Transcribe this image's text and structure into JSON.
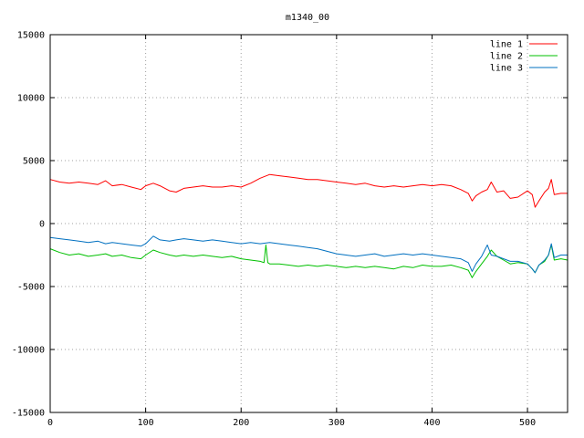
{
  "chart_data": {
    "type": "line",
    "title": "m1340_00",
    "xlabel": "",
    "ylabel": "",
    "xlim": [
      0,
      542
    ],
    "ylim": [
      -15000,
      15000
    ],
    "x_ticks": [
      0,
      100,
      200,
      300,
      400,
      500
    ],
    "y_ticks": [
      -15000,
      -10000,
      -5000,
      0,
      5000,
      10000,
      15000
    ],
    "grid": true,
    "legend_position": "top-right",
    "series": [
      {
        "name": "line 1",
        "color": "#ff0000",
        "x": [
          0,
          10,
          20,
          30,
          40,
          50,
          58,
          65,
          75,
          85,
          95,
          100,
          108,
          115,
          125,
          132,
          140,
          150,
          160,
          170,
          180,
          190,
          200,
          210,
          220,
          230,
          240,
          250,
          260,
          270,
          280,
          290,
          300,
          310,
          320,
          330,
          340,
          350,
          360,
          370,
          380,
          390,
          400,
          410,
          420,
          430,
          438,
          442,
          446,
          452,
          458,
          462,
          468,
          475,
          482,
          490,
          500,
          505,
          508,
          512,
          518,
          522,
          525,
          528,
          535,
          542
        ],
        "values": [
          3500,
          3300,
          3200,
          3300,
          3200,
          3100,
          3400,
          3000,
          3100,
          2900,
          2700,
          3000,
          3200,
          3000,
          2600,
          2500,
          2800,
          2900,
          3000,
          2900,
          2900,
          3000,
          2900,
          3200,
          3600,
          3900,
          3800,
          3700,
          3600,
          3500,
          3500,
          3400,
          3300,
          3200,
          3100,
          3200,
          3000,
          2900,
          3000,
          2900,
          3000,
          3100,
          3000,
          3100,
          3000,
          2700,
          2400,
          1800,
          2200,
          2500,
          2700,
          3300,
          2500,
          2600,
          2000,
          2100,
          2600,
          2300,
          1300,
          1800,
          2500,
          2800,
          3500,
          2300,
          2400,
          2400
        ]
      },
      {
        "name": "line 2",
        "color": "#00c000",
        "x": [
          0,
          10,
          20,
          30,
          40,
          50,
          58,
          65,
          75,
          85,
          95,
          100,
          108,
          115,
          125,
          132,
          140,
          150,
          160,
          170,
          180,
          190,
          200,
          210,
          220,
          224,
          226,
          228,
          230,
          240,
          250,
          260,
          270,
          280,
          290,
          300,
          310,
          320,
          330,
          340,
          350,
          360,
          370,
          380,
          390,
          400,
          410,
          420,
          430,
          438,
          442,
          446,
          452,
          458,
          462,
          468,
          475,
          482,
          490,
          500,
          505,
          508,
          512,
          518,
          522,
          525,
          528,
          535,
          542
        ],
        "values": [
          -2000,
          -2300,
          -2500,
          -2400,
          -2600,
          -2500,
          -2400,
          -2600,
          -2500,
          -2700,
          -2800,
          -2500,
          -2100,
          -2300,
          -2500,
          -2600,
          -2500,
          -2600,
          -2500,
          -2600,
          -2700,
          -2600,
          -2800,
          -2900,
          -3000,
          -3100,
          -1700,
          -3100,
          -3200,
          -3200,
          -3300,
          -3400,
          -3300,
          -3400,
          -3300,
          -3400,
          -3500,
          -3400,
          -3500,
          -3400,
          -3500,
          -3600,
          -3400,
          -3500,
          -3300,
          -3400,
          -3400,
          -3300,
          -3500,
          -3700,
          -4300,
          -3800,
          -3200,
          -2600,
          -2100,
          -2600,
          -2900,
          -3200,
          -3100,
          -3200,
          -3600,
          -3900,
          -3300,
          -3000,
          -2500,
          -1700,
          -2900,
          -2800,
          -2900
        ]
      },
      {
        "name": "line 3",
        "color": "#0070c0",
        "x": [
          0,
          10,
          20,
          30,
          40,
          50,
          58,
          65,
          75,
          85,
          95,
          100,
          108,
          115,
          125,
          132,
          140,
          150,
          160,
          170,
          180,
          190,
          200,
          210,
          220,
          230,
          240,
          250,
          260,
          270,
          280,
          290,
          300,
          310,
          320,
          330,
          340,
          350,
          360,
          370,
          380,
          390,
          400,
          410,
          420,
          430,
          438,
          442,
          446,
          452,
          458,
          462,
          468,
          475,
          482,
          490,
          500,
          505,
          508,
          512,
          518,
          522,
          525,
          528,
          535,
          542
        ],
        "values": [
          -1100,
          -1200,
          -1300,
          -1400,
          -1500,
          -1400,
          -1600,
          -1500,
          -1600,
          -1700,
          -1800,
          -1600,
          -1000,
          -1300,
          -1400,
          -1300,
          -1200,
          -1300,
          -1400,
          -1300,
          -1400,
          -1500,
          -1600,
          -1500,
          -1600,
          -1500,
          -1600,
          -1700,
          -1800,
          -1900,
          -2000,
          -2200,
          -2400,
          -2500,
          -2600,
          -2500,
          -2400,
          -2600,
          -2500,
          -2400,
          -2500,
          -2400,
          -2500,
          -2600,
          -2700,
          -2800,
          -3100,
          -3800,
          -3200,
          -2600,
          -1700,
          -2500,
          -2600,
          -2800,
          -3000,
          -3000,
          -3200,
          -3600,
          -3900,
          -3300,
          -2900,
          -2500,
          -1600,
          -2700,
          -2500,
          -2500
        ]
      }
    ]
  }
}
